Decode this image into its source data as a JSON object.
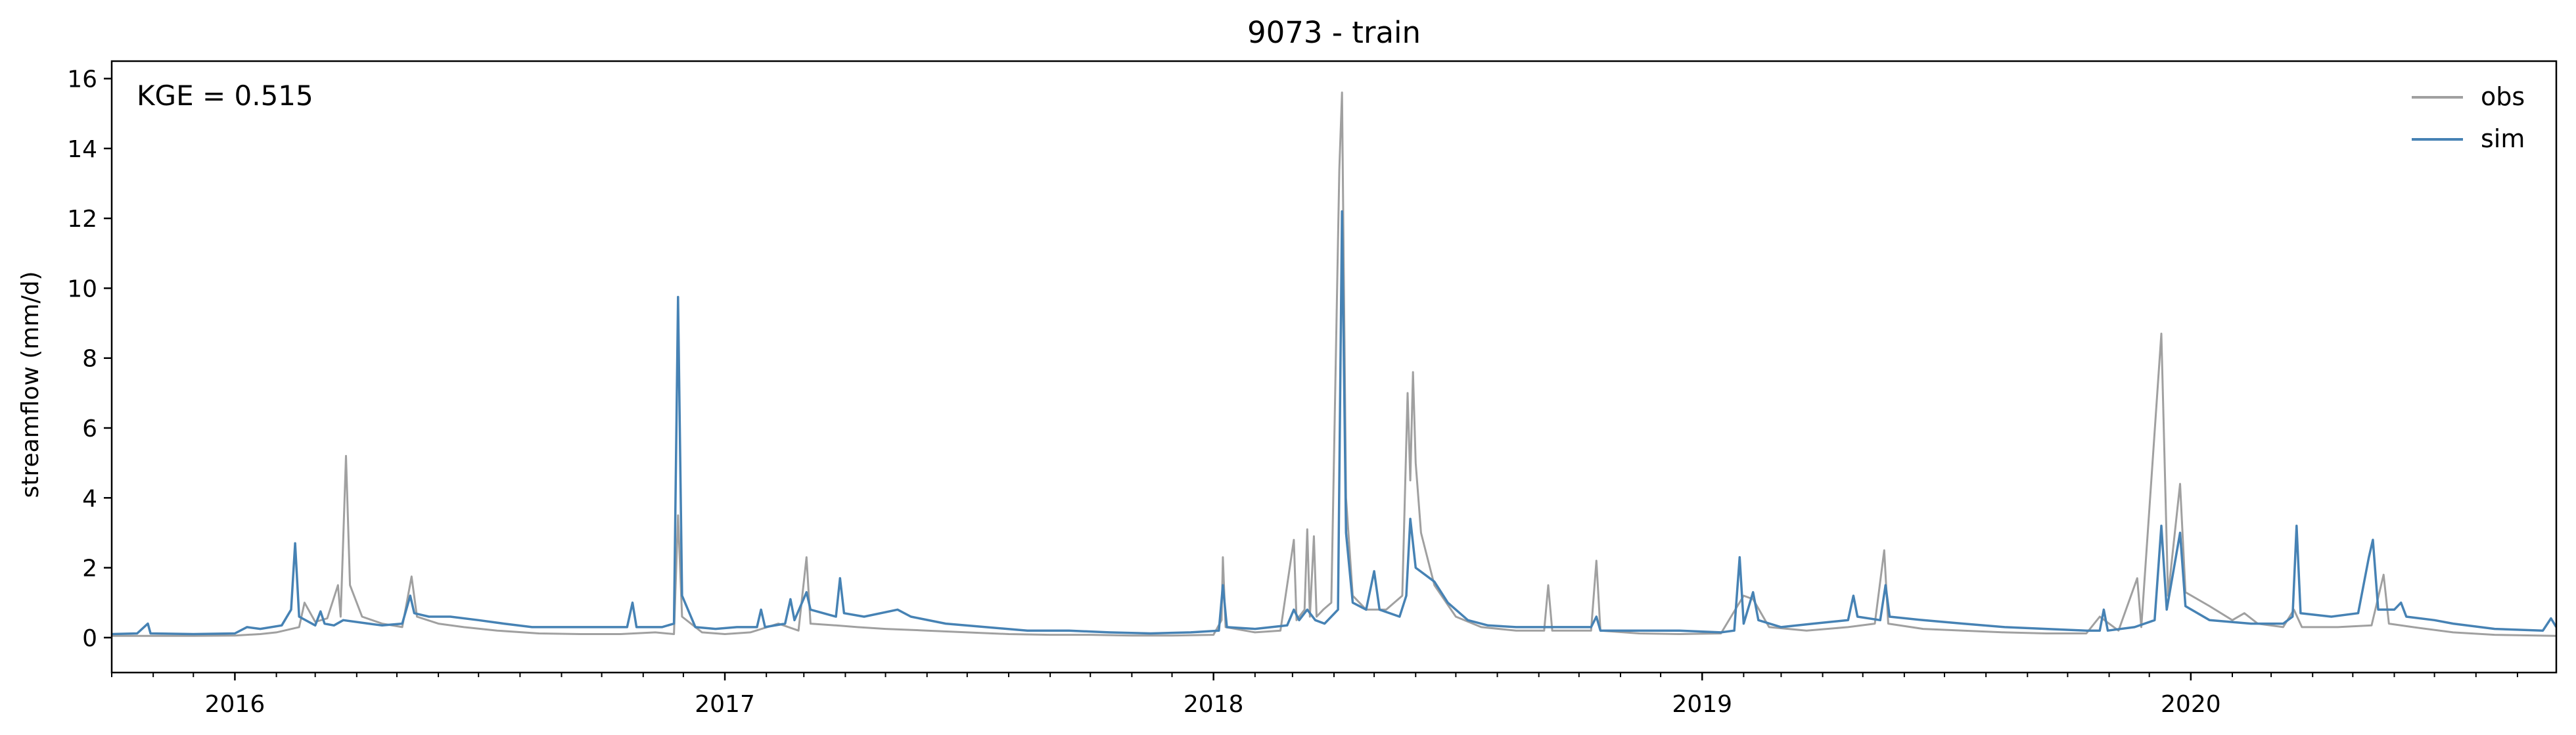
{
  "chart_data": {
    "type": "line",
    "title": "9073 - train",
    "xlabel": "",
    "ylabel": "streamflow (mm/d)",
    "annotation": "KGE = 0.515",
    "xlim": [
      "2015-10-01",
      "2020-09-30"
    ],
    "ylim": [
      -1.0,
      16.5
    ],
    "yticks": [
      0,
      2,
      4,
      6,
      8,
      10,
      12,
      14,
      16
    ],
    "xticks": [
      {
        "date": "2016-01-01",
        "label": "2016"
      },
      {
        "date": "2017-01-01",
        "label": "2017"
      },
      {
        "date": "2018-01-01",
        "label": "2018"
      },
      {
        "date": "2019-01-01",
        "label": "2019"
      },
      {
        "date": "2020-01-01",
        "label": "2020"
      }
    ],
    "grid": false,
    "legend_position": "top-right",
    "series": [
      {
        "name": "obs",
        "color": "#a0a0a0",
        "points": [
          [
            "2015-10-01",
            0.05
          ],
          [
            "2015-11-01",
            0.05
          ],
          [
            "2015-12-01",
            0.05
          ],
          [
            "2016-01-01",
            0.06
          ],
          [
            "2016-01-20",
            0.1
          ],
          [
            "2016-02-01",
            0.15
          ],
          [
            "2016-02-18",
            0.3
          ],
          [
            "2016-02-22",
            1.0
          ],
          [
            "2016-03-01",
            0.45
          ],
          [
            "2016-03-10",
            0.55
          ],
          [
            "2016-03-18",
            1.5
          ],
          [
            "2016-03-20",
            0.6
          ],
          [
            "2016-03-24",
            5.2
          ],
          [
            "2016-03-27",
            1.5
          ],
          [
            "2016-04-05",
            0.6
          ],
          [
            "2016-04-20",
            0.4
          ],
          [
            "2016-05-05",
            0.3
          ],
          [
            "2016-05-12",
            1.75
          ],
          [
            "2016-05-16",
            0.6
          ],
          [
            "2016-06-01",
            0.4
          ],
          [
            "2016-06-20",
            0.3
          ],
          [
            "2016-07-15",
            0.2
          ],
          [
            "2016-08-15",
            0.12
          ],
          [
            "2016-09-15",
            0.1
          ],
          [
            "2016-10-15",
            0.1
          ],
          [
            "2016-11-10",
            0.15
          ],
          [
            "2016-11-24",
            0.1
          ],
          [
            "2016-11-27",
            3.5
          ],
          [
            "2016-11-30",
            0.6
          ],
          [
            "2016-12-15",
            0.15
          ],
          [
            "2017-01-01",
            0.1
          ],
          [
            "2017-01-20",
            0.15
          ],
          [
            "2017-02-10",
            0.4
          ],
          [
            "2017-02-25",
            0.2
          ],
          [
            "2017-03-03",
            2.3
          ],
          [
            "2017-03-06",
            0.4
          ],
          [
            "2017-03-25",
            0.35
          ],
          [
            "2017-04-10",
            0.3
          ],
          [
            "2017-05-01",
            0.25
          ],
          [
            "2017-06-01",
            0.2
          ],
          [
            "2017-07-01",
            0.15
          ],
          [
            "2017-08-01",
            0.1
          ],
          [
            "2017-09-01",
            0.08
          ],
          [
            "2017-10-01",
            0.08
          ],
          [
            "2017-11-01",
            0.06
          ],
          [
            "2017-12-01",
            0.06
          ],
          [
            "2018-01-01",
            0.08
          ],
          [
            "2018-01-07",
            0.5
          ],
          [
            "2018-01-08",
            2.3
          ],
          [
            "2018-01-10",
            0.3
          ],
          [
            "2018-02-01",
            0.15
          ],
          [
            "2018-02-20",
            0.2
          ],
          [
            "2018-03-02",
            2.8
          ],
          [
            "2018-03-04",
            0.5
          ],
          [
            "2018-03-10",
            0.8
          ],
          [
            "2018-03-12",
            3.1
          ],
          [
            "2018-03-14",
            0.6
          ],
          [
            "2018-03-17",
            2.9
          ],
          [
            "2018-03-19",
            0.6
          ],
          [
            "2018-03-24",
            0.8
          ],
          [
            "2018-03-30",
            1.0
          ],
          [
            "2018-04-05",
            13.4
          ],
          [
            "2018-04-07",
            15.6
          ],
          [
            "2018-04-10",
            4.0
          ],
          [
            "2018-04-15",
            1.2
          ],
          [
            "2018-04-25",
            0.8
          ],
          [
            "2018-05-10",
            0.8
          ],
          [
            "2018-05-22",
            1.2
          ],
          [
            "2018-05-26",
            7.0
          ],
          [
            "2018-05-28",
            4.5
          ],
          [
            "2018-05-30",
            7.6
          ],
          [
            "2018-06-01",
            5.0
          ],
          [
            "2018-06-05",
            3.0
          ],
          [
            "2018-06-15",
            1.5
          ],
          [
            "2018-07-01",
            0.6
          ],
          [
            "2018-07-20",
            0.3
          ],
          [
            "2018-08-15",
            0.2
          ],
          [
            "2018-09-05",
            0.2
          ],
          [
            "2018-09-08",
            1.5
          ],
          [
            "2018-09-11",
            0.2
          ],
          [
            "2018-10-10",
            0.2
          ],
          [
            "2018-10-14",
            2.2
          ],
          [
            "2018-10-17",
            0.2
          ],
          [
            "2018-11-15",
            0.12
          ],
          [
            "2018-12-15",
            0.1
          ],
          [
            "2019-01-15",
            0.12
          ],
          [
            "2019-02-01",
            1.2
          ],
          [
            "2019-02-08",
            1.1
          ],
          [
            "2019-02-20",
            0.3
          ],
          [
            "2019-03-20",
            0.2
          ],
          [
            "2019-04-20",
            0.3
          ],
          [
            "2019-05-10",
            0.4
          ],
          [
            "2019-05-17",
            2.5
          ],
          [
            "2019-05-20",
            0.4
          ],
          [
            "2019-06-15",
            0.25
          ],
          [
            "2019-07-15",
            0.2
          ],
          [
            "2019-08-15",
            0.15
          ],
          [
            "2019-09-15",
            0.12
          ],
          [
            "2019-10-15",
            0.12
          ],
          [
            "2019-10-25",
            0.6
          ],
          [
            "2019-11-08",
            0.2
          ],
          [
            "2019-11-22",
            1.7
          ],
          [
            "2019-11-25",
            0.3
          ],
          [
            "2019-12-10",
            8.7
          ],
          [
            "2019-12-15",
            1.2
          ],
          [
            "2019-12-24",
            4.4
          ],
          [
            "2019-12-28",
            1.3
          ],
          [
            "2020-01-15",
            0.9
          ],
          [
            "2020-02-01",
            0.5
          ],
          [
            "2020-02-10",
            0.7
          ],
          [
            "2020-02-20",
            0.4
          ],
          [
            "2020-03-10",
            0.3
          ],
          [
            "2020-03-18",
            0.8
          ],
          [
            "2020-03-24",
            0.3
          ],
          [
            "2020-04-20",
            0.3
          ],
          [
            "2020-05-15",
            0.35
          ],
          [
            "2020-05-24",
            1.8
          ],
          [
            "2020-05-28",
            0.4
          ],
          [
            "2020-06-15",
            0.3
          ],
          [
            "2020-07-15",
            0.15
          ],
          [
            "2020-08-15",
            0.08
          ],
          [
            "2020-09-30",
            0.05
          ]
        ]
      },
      {
        "name": "sim",
        "color": "#4682b4",
        "points": [
          [
            "2015-10-01",
            0.1
          ],
          [
            "2015-10-20",
            0.12
          ],
          [
            "2015-10-28",
            0.4
          ],
          [
            "2015-10-30",
            0.12
          ],
          [
            "2015-12-01",
            0.1
          ],
          [
            "2016-01-01",
            0.12
          ],
          [
            "2016-01-10",
            0.3
          ],
          [
            "2016-01-20",
            0.25
          ],
          [
            "2016-02-05",
            0.35
          ],
          [
            "2016-02-12",
            0.8
          ],
          [
            "2016-02-15",
            2.7
          ],
          [
            "2016-02-18",
            0.6
          ],
          [
            "2016-03-01",
            0.35
          ],
          [
            "2016-03-05",
            0.75
          ],
          [
            "2016-03-08",
            0.4
          ],
          [
            "2016-03-15",
            0.35
          ],
          [
            "2016-03-22",
            0.5
          ],
          [
            "2016-04-10",
            0.4
          ],
          [
            "2016-04-20",
            0.35
          ],
          [
            "2016-05-05",
            0.4
          ],
          [
            "2016-05-11",
            1.2
          ],
          [
            "2016-05-14",
            0.7
          ],
          [
            "2016-05-25",
            0.6
          ],
          [
            "2016-06-10",
            0.6
          ],
          [
            "2016-07-01",
            0.5
          ],
          [
            "2016-07-20",
            0.4
          ],
          [
            "2016-08-10",
            0.3
          ],
          [
            "2016-09-10",
            0.3
          ],
          [
            "2016-10-10",
            0.3
          ],
          [
            "2016-10-20",
            0.3
          ],
          [
            "2016-10-24",
            1.0
          ],
          [
            "2016-10-27",
            0.3
          ],
          [
            "2016-11-15",
            0.3
          ],
          [
            "2016-11-24",
            0.4
          ],
          [
            "2016-11-27",
            9.75
          ],
          [
            "2016-11-30",
            1.2
          ],
          [
            "2016-12-10",
            0.3
          ],
          [
            "2016-12-25",
            0.25
          ],
          [
            "2017-01-10",
            0.3
          ],
          [
            "2017-01-25",
            0.3
          ],
          [
            "2017-01-28",
            0.8
          ],
          [
            "2017-01-31",
            0.3
          ],
          [
            "2017-02-15",
            0.4
          ],
          [
            "2017-02-19",
            1.1
          ],
          [
            "2017-02-22",
            0.5
          ],
          [
            "2017-03-03",
            1.3
          ],
          [
            "2017-03-06",
            0.8
          ],
          [
            "2017-03-25",
            0.6
          ],
          [
            "2017-03-28",
            1.7
          ],
          [
            "2017-03-31",
            0.7
          ],
          [
            "2017-04-15",
            0.6
          ],
          [
            "2017-05-10",
            0.8
          ],
          [
            "2017-05-20",
            0.6
          ],
          [
            "2017-06-15",
            0.4
          ],
          [
            "2017-07-15",
            0.3
          ],
          [
            "2017-08-15",
            0.2
          ],
          [
            "2017-09-15",
            0.2
          ],
          [
            "2017-10-15",
            0.15
          ],
          [
            "2017-11-15",
            0.12
          ],
          [
            "2017-12-15",
            0.15
          ],
          [
            "2018-01-05",
            0.2
          ],
          [
            "2018-01-08",
            1.5
          ],
          [
            "2018-01-11",
            0.3
          ],
          [
            "2018-02-01",
            0.25
          ],
          [
            "2018-02-25",
            0.35
          ],
          [
            "2018-03-02",
            0.8
          ],
          [
            "2018-03-06",
            0.5
          ],
          [
            "2018-03-12",
            0.8
          ],
          [
            "2018-03-18",
            0.5
          ],
          [
            "2018-03-25",
            0.4
          ],
          [
            "2018-04-04",
            0.8
          ],
          [
            "2018-04-07",
            12.2
          ],
          [
            "2018-04-10",
            3.0
          ],
          [
            "2018-04-15",
            1.0
          ],
          [
            "2018-04-25",
            0.8
          ],
          [
            "2018-05-01",
            1.9
          ],
          [
            "2018-05-05",
            0.8
          ],
          [
            "2018-05-20",
            0.6
          ],
          [
            "2018-05-25",
            1.2
          ],
          [
            "2018-05-28",
            3.4
          ],
          [
            "2018-06-01",
            2.0
          ],
          [
            "2018-06-15",
            1.6
          ],
          [
            "2018-06-25",
            1.0
          ],
          [
            "2018-07-10",
            0.5
          ],
          [
            "2018-07-25",
            0.35
          ],
          [
            "2018-08-15",
            0.3
          ],
          [
            "2018-09-15",
            0.3
          ],
          [
            "2018-10-10",
            0.3
          ],
          [
            "2018-10-14",
            0.6
          ],
          [
            "2018-10-17",
            0.2
          ],
          [
            "2018-11-15",
            0.2
          ],
          [
            "2018-12-15",
            0.2
          ],
          [
            "2019-01-15",
            0.15
          ],
          [
            "2019-01-25",
            0.2
          ],
          [
            "2019-01-29",
            2.3
          ],
          [
            "2019-02-01",
            0.4
          ],
          [
            "2019-02-08",
            1.3
          ],
          [
            "2019-02-12",
            0.5
          ],
          [
            "2019-03-01",
            0.3
          ],
          [
            "2019-03-25",
            0.4
          ],
          [
            "2019-04-20",
            0.5
          ],
          [
            "2019-04-24",
            1.2
          ],
          [
            "2019-04-27",
            0.6
          ],
          [
            "2019-05-14",
            0.5
          ],
          [
            "2019-05-18",
            1.5
          ],
          [
            "2019-05-21",
            0.6
          ],
          [
            "2019-06-15",
            0.5
          ],
          [
            "2019-07-15",
            0.4
          ],
          [
            "2019-08-15",
            0.3
          ],
          [
            "2019-09-15",
            0.25
          ],
          [
            "2019-10-15",
            0.2
          ],
          [
            "2019-10-25",
            0.2
          ],
          [
            "2019-10-28",
            0.8
          ],
          [
            "2019-10-31",
            0.2
          ],
          [
            "2019-11-20",
            0.3
          ],
          [
            "2019-12-05",
            0.5
          ],
          [
            "2019-12-10",
            3.2
          ],
          [
            "2019-12-14",
            0.8
          ],
          [
            "2019-12-24",
            3.0
          ],
          [
            "2019-12-28",
            0.9
          ],
          [
            "2020-01-15",
            0.5
          ],
          [
            "2020-02-15",
            0.4
          ],
          [
            "2020-03-10",
            0.4
          ],
          [
            "2020-03-17",
            0.6
          ],
          [
            "2020-03-20",
            3.2
          ],
          [
            "2020-03-23",
            0.7
          ],
          [
            "2020-04-15",
            0.6
          ],
          [
            "2020-05-05",
            0.7
          ],
          [
            "2020-05-13",
            2.3
          ],
          [
            "2020-05-16",
            2.8
          ],
          [
            "2020-05-20",
            0.8
          ],
          [
            "2020-06-01",
            0.8
          ],
          [
            "2020-06-06",
            1.0
          ],
          [
            "2020-06-10",
            0.6
          ],
          [
            "2020-07-01",
            0.5
          ],
          [
            "2020-07-15",
            0.4
          ],
          [
            "2020-08-15",
            0.25
          ],
          [
            "2020-09-20",
            0.2
          ],
          [
            "2020-09-26",
            0.55
          ],
          [
            "2020-09-30",
            0.3
          ]
        ]
      }
    ]
  }
}
